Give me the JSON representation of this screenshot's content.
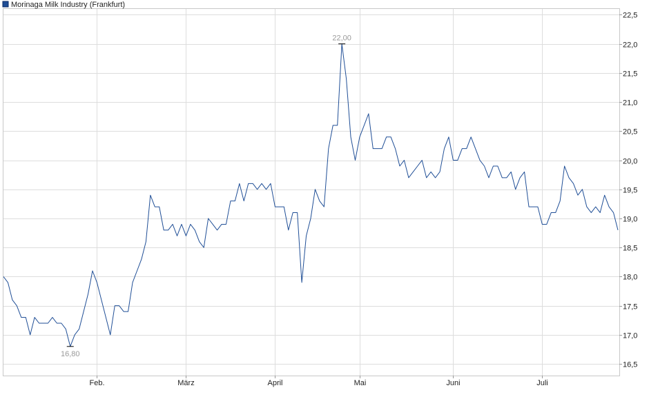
{
  "chart_data": {
    "type": "line",
    "title": "",
    "xlabel": "",
    "ylabel": "",
    "ylim": [
      16.3,
      22.6
    ],
    "y_ticks": [
      16.5,
      17.0,
      17.5,
      18.0,
      18.5,
      19.0,
      19.5,
      20.0,
      20.5,
      21.0,
      21.5,
      22.0,
      22.5
    ],
    "y_tick_labels": [
      "16,5",
      "17,0",
      "17,5",
      "18,0",
      "18,5",
      "19,0",
      "19,5",
      "20,0",
      "20,5",
      "21,0",
      "21,5",
      "22,0",
      "22,5"
    ],
    "x_tick_labels": [
      "Feb.",
      "März",
      "April",
      "Mai",
      "Juni",
      "Juli"
    ],
    "x_tick_index": [
      21,
      41,
      61,
      80,
      101,
      121
    ],
    "grid": true,
    "legend_position": "top-left",
    "series": [
      {
        "name": "Morinaga Milk Industry (Frankfurt)",
        "color": "#1f4e96",
        "values": [
          18.0,
          17.9,
          17.6,
          17.5,
          17.3,
          17.3,
          17.0,
          17.3,
          17.2,
          17.2,
          17.2,
          17.3,
          17.2,
          17.2,
          17.1,
          16.8,
          17.0,
          17.1,
          17.4,
          17.7,
          18.1,
          17.9,
          17.6,
          17.3,
          17.0,
          17.5,
          17.5,
          17.4,
          17.4,
          17.9,
          18.1,
          18.3,
          18.6,
          19.4,
          19.2,
          19.2,
          18.8,
          18.8,
          18.9,
          18.7,
          18.9,
          18.7,
          18.9,
          18.8,
          18.6,
          18.5,
          19.0,
          18.9,
          18.8,
          18.9,
          18.9,
          19.3,
          19.3,
          19.6,
          19.3,
          19.6,
          19.6,
          19.5,
          19.6,
          19.5,
          19.6,
          19.2,
          19.2,
          19.2,
          18.8,
          19.1,
          19.1,
          17.9,
          18.7,
          19.0,
          19.5,
          19.3,
          19.2,
          20.2,
          20.6,
          20.6,
          22.0,
          21.4,
          20.4,
          20.0,
          20.4,
          20.6,
          20.8,
          20.2,
          20.2,
          20.2,
          20.4,
          20.4,
          20.2,
          19.9,
          20.0,
          19.7,
          19.8,
          19.9,
          20.0,
          19.7,
          19.8,
          19.7,
          19.8,
          20.2,
          20.4,
          20.0,
          20.0,
          20.2,
          20.2,
          20.4,
          20.2,
          20.0,
          19.9,
          19.7,
          19.9,
          19.9,
          19.7,
          19.7,
          19.8,
          19.5,
          19.7,
          19.8,
          19.2,
          19.2,
          19.2,
          18.9,
          18.9,
          19.1,
          19.1,
          19.3,
          19.9,
          19.7,
          19.6,
          19.4,
          19.5,
          19.2,
          19.1,
          19.2,
          19.1,
          19.4,
          19.2,
          19.1,
          18.8
        ]
      }
    ],
    "annotations": [
      {
        "text": "22,00",
        "index": 76,
        "value": 22.0,
        "placement": "above"
      },
      {
        "text": "16,80",
        "index": 15,
        "value": 16.8,
        "placement": "below"
      }
    ]
  }
}
